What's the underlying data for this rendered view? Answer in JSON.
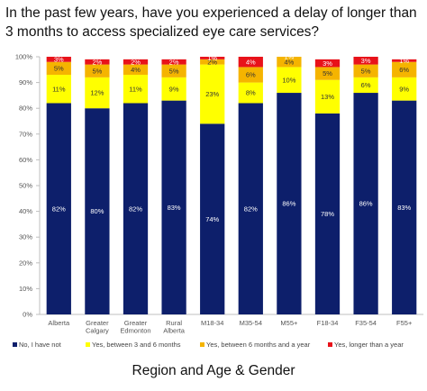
{
  "title": "In the past few years, have you experienced a delay of longer than 3 months to access specialized eye care services?",
  "subtitle": "Region and Age & Gender",
  "chart_data": {
    "type": "bar",
    "stacked": true,
    "categories": [
      "Alberta",
      "Greater Calgary",
      "Greater Edmonton",
      "Rural Alberta",
      "M18-34",
      "M35-54",
      "M55+",
      "F18-34",
      "F35-54",
      "F55+"
    ],
    "category_lines": [
      [
        "Alberta"
      ],
      [
        "Greater",
        "Calgary"
      ],
      [
        "Greater",
        "Edmonton"
      ],
      [
        "Rural",
        "Alberta"
      ],
      [
        "M18-34"
      ],
      [
        "M35-54"
      ],
      [
        "M55+"
      ],
      [
        "F18-34"
      ],
      [
        "F35-54"
      ],
      [
        "F55+"
      ]
    ],
    "series": [
      {
        "name": "No, I have not",
        "color": "#0d1f6b",
        "label_color": "#ffffff",
        "values": [
          82,
          80,
          82,
          83,
          74,
          82,
          86,
          78,
          86,
          83
        ]
      },
      {
        "name": "Yes, between 3 and 6 months",
        "color": "#ffff00",
        "label_color": "#333333",
        "values": [
          11,
          12,
          11,
          9,
          23,
          8,
          10,
          13,
          6,
          9
        ]
      },
      {
        "name": "Yes, between 6 months and a year",
        "color": "#f5b400",
        "label_color": "#333333",
        "values": [
          5,
          5,
          4,
          5,
          2,
          6,
          4,
          5,
          5,
          6
        ]
      },
      {
        "name": "Yes, longer than a year",
        "color": "#e8121a",
        "label_color": "#ffffff",
        "values": [
          3,
          2,
          2,
          2,
          1,
          4,
          1,
          3,
          3,
          1
        ]
      }
    ],
    "value_labels": [
      [
        "82%",
        "80%",
        "82%",
        "83%",
        "74%",
        "82%",
        "86%",
        "78%",
        "86%",
        "83%"
      ],
      [
        "11%",
        "12%",
        "11%",
        "9%",
        "23%",
        "8%",
        "10%",
        "13%",
        "6%",
        "9%"
      ],
      [
        "5%",
        "5%",
        "4%",
        "5%",
        "2%",
        "6%",
        "4%",
        "5%",
        "5%",
        "6%"
      ],
      [
        "3%",
        "2%",
        "2%",
        "2%",
        "1%",
        "4%",
        "1%",
        "3%",
        "3%",
        "1%"
      ]
    ],
    "y_ticks": [
      "0%",
      "10%",
      "20%",
      "30%",
      "40%",
      "50%",
      "60%",
      "70%",
      "80%",
      "90%",
      "100%"
    ],
    "ylim": [
      0,
      100
    ],
    "grid": false,
    "legend_position": "bottom"
  }
}
